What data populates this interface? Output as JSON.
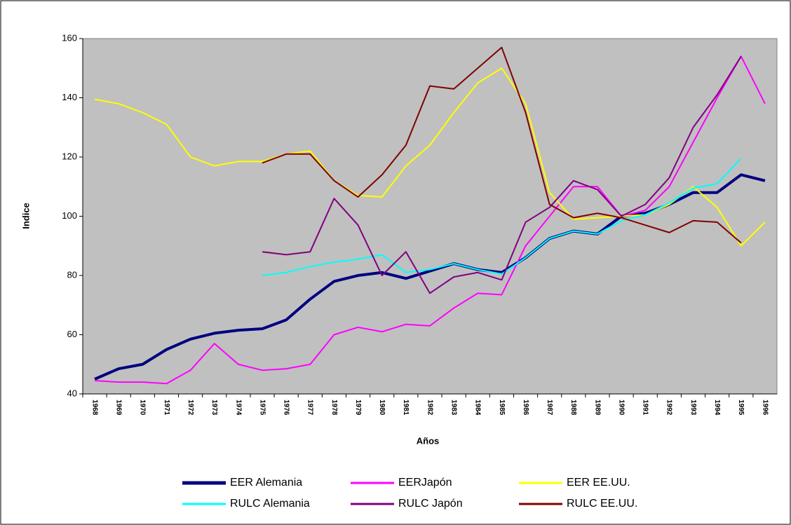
{
  "chart_data": {
    "type": "line",
    "y_label": "Indice",
    "x_label": "Años",
    "categories": [
      "1968",
      "1969",
      "1970",
      "1971",
      "1972",
      "1973",
      "1974",
      "1975",
      "1976",
      "1977",
      "1978",
      "1979",
      "1980",
      "1981",
      "1982",
      "1983",
      "1984",
      "1985",
      "1986",
      "1987",
      "1988",
      "1989",
      "1990",
      "1991",
      "1992",
      "1993",
      "1994",
      "1995",
      "1996"
    ],
    "ylim": [
      40,
      160
    ],
    "yticks": [
      40,
      60,
      80,
      100,
      120,
      140,
      160
    ],
    "background": "#c0c0c0",
    "legend": "bottom",
    "series": [
      {
        "name": "EER Alemania",
        "color": "#000080",
        "width": 4,
        "values": [
          45,
          48.5,
          50,
          55,
          58.5,
          60.5,
          61.5,
          62,
          65,
          72,
          78,
          80,
          81,
          79,
          81.5,
          84,
          82,
          81,
          86,
          92.5,
          95,
          94,
          100,
          101,
          104,
          108,
          108,
          114,
          112
        ]
      },
      {
        "name": "EERJapón",
        "color": "#ff00ff",
        "width": 2,
        "values": [
          44.5,
          44,
          44,
          43.5,
          48,
          57,
          50,
          48,
          48.5,
          50,
          60,
          62.5,
          61,
          63.5,
          63,
          69,
          74,
          73.5,
          90,
          100,
          110,
          110,
          100,
          102,
          110,
          125,
          140,
          154,
          138
        ]
      },
      {
        "name": "EER EE.UU.",
        "color": "#ffff00",
        "width": 2,
        "values": [
          139.5,
          138,
          135,
          131,
          120,
          117,
          118.5,
          118.5,
          121,
          122,
          112,
          107,
          106.5,
          117,
          124,
          135,
          145,
          150,
          138,
          108,
          99,
          99.5,
          100,
          100.5,
          104,
          110,
          103,
          90,
          98
        ]
      },
      {
        "name": "RULC Alemania",
        "color": "#00ffff",
        "width": 2,
        "values": [
          null,
          null,
          null,
          null,
          null,
          null,
          null,
          80,
          81,
          83,
          84.5,
          85.5,
          87,
          81,
          82,
          84,
          82,
          80.5,
          86,
          92.5,
          95,
          94,
          98.5,
          100.5,
          104.5,
          109.5,
          111,
          119.5,
          null
        ]
      },
      {
        "name": "RULC Japón",
        "color": "#800080",
        "width": 2,
        "values": [
          null,
          null,
          null,
          null,
          null,
          null,
          null,
          88,
          87,
          88,
          106,
          97,
          80,
          88,
          74,
          79.5,
          81,
          78.5,
          98,
          103,
          112,
          109,
          100,
          104,
          113,
          130,
          141,
          154,
          null
        ]
      },
      {
        "name": "RULC EE.UU.",
        "color": "#800000",
        "width": 2,
        "values": [
          null,
          null,
          null,
          null,
          null,
          null,
          null,
          118,
          121,
          121,
          112,
          106.5,
          114,
          124,
          144,
          143,
          150,
          157,
          135,
          104,
          99.5,
          101,
          99.5,
          97,
          94.5,
          98.5,
          98,
          91,
          null
        ]
      }
    ]
  }
}
